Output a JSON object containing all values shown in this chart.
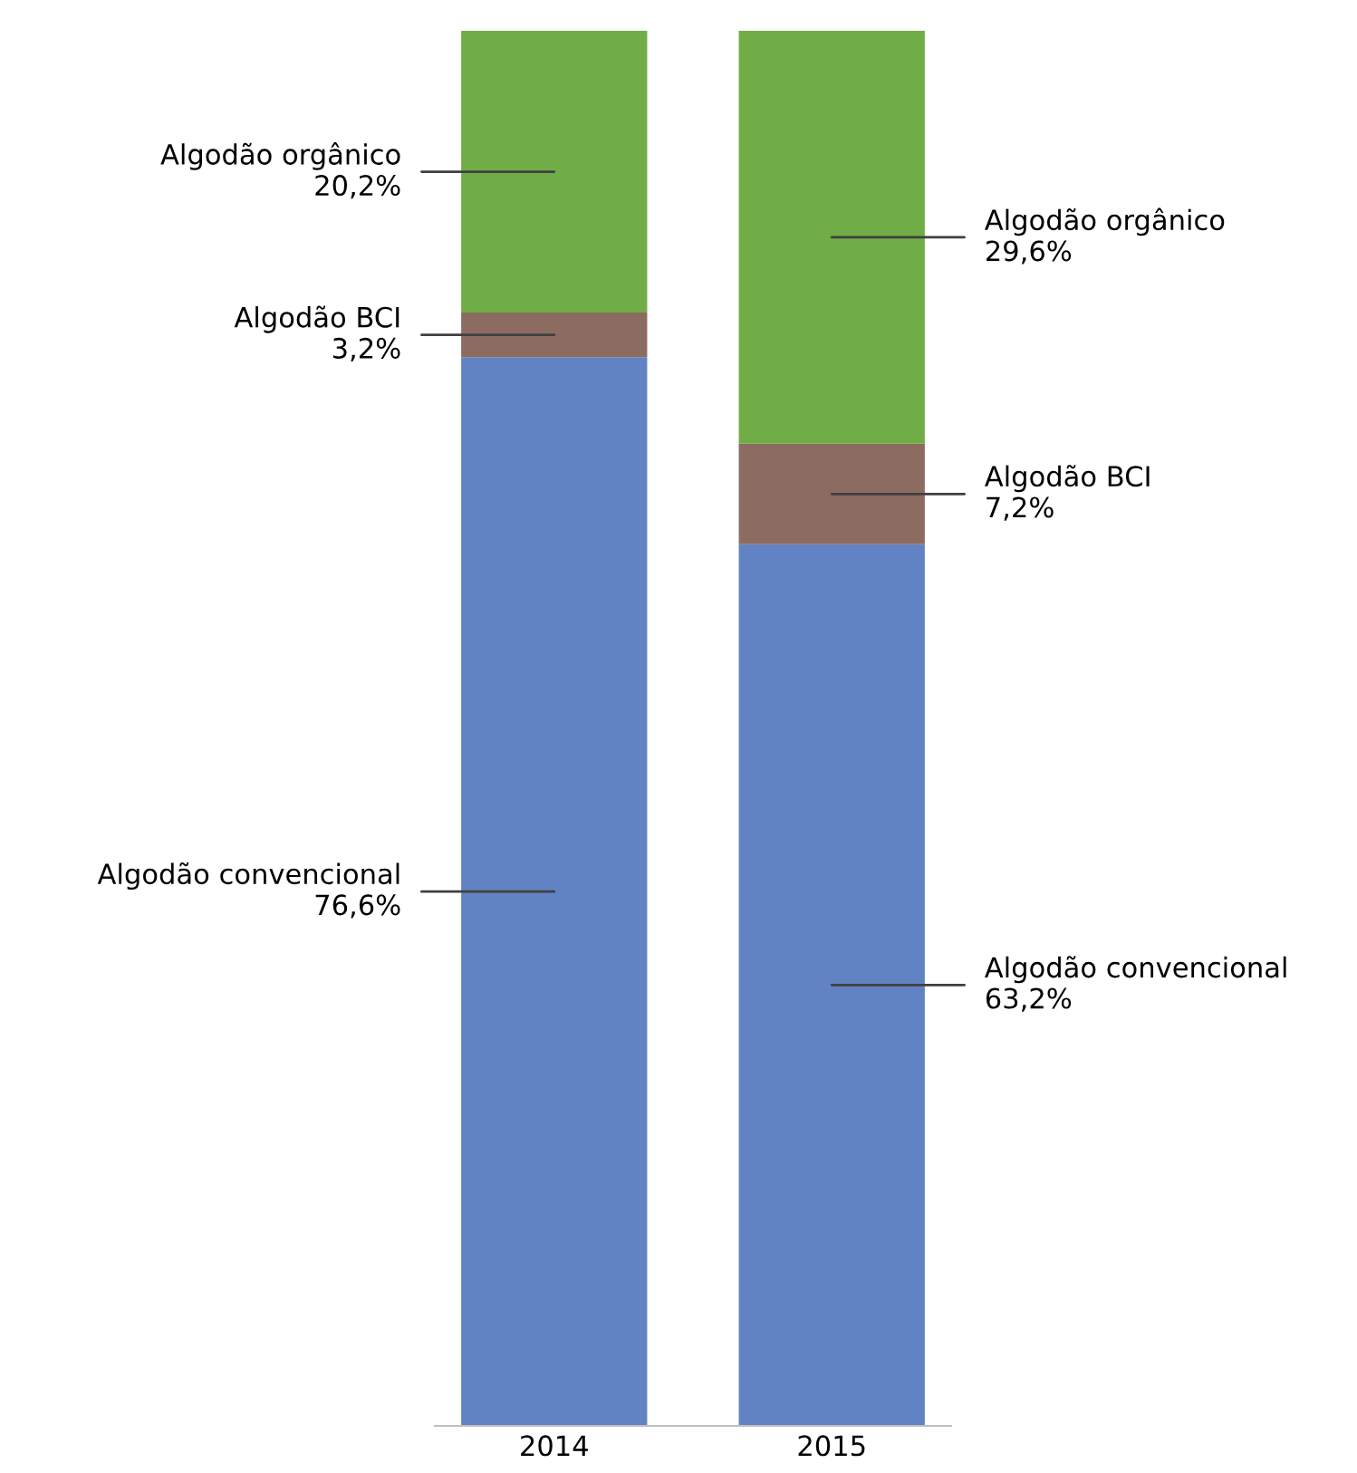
{
  "chart_data": {
    "type": "bar",
    "stacked": true,
    "categories": [
      "2014",
      "2015"
    ],
    "grid": false,
    "legend": false,
    "series": [
      {
        "name": "Algodão convencional",
        "color": "#6283c3",
        "values": [
          76.6,
          63.2
        ],
        "value_labels": [
          "76,6%",
          "63,2%"
        ]
      },
      {
        "name": "Algodão BCI",
        "color": "#8c6b60",
        "values": [
          3.2,
          7.2
        ],
        "value_labels": [
          "3,2%",
          "7,2%"
        ]
      },
      {
        "name": "Algodão orgânico",
        "color": "#70ad47",
        "values": [
          20.2,
          29.6
        ],
        "value_labels": [
          "20,2%",
          "29,6%"
        ]
      }
    ]
  }
}
